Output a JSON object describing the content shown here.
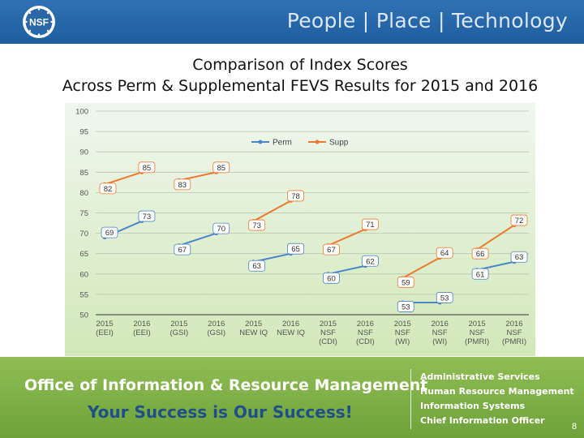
{
  "header": {
    "tagline": "People | Place | Technology",
    "logo_text": "NSF"
  },
  "title": {
    "line1": "Comparison of Index Scores",
    "line2": "Across Perm & Supplemental FEVS Results for 2015 and 2016"
  },
  "chart_data": {
    "type": "line",
    "categories": [
      [
        "2015",
        "(EEI)"
      ],
      [
        "2016",
        "(EEI)"
      ],
      [
        "2015",
        "(GSI)"
      ],
      [
        "2016",
        "(GSI)"
      ],
      [
        "2015",
        "NEW IQ"
      ],
      [
        "2016",
        "NEW IQ"
      ],
      [
        "2015",
        "NSF",
        "(CDI)"
      ],
      [
        "2016",
        "NSF",
        "(CDI)"
      ],
      [
        "2015",
        "NSF",
        "(WI)"
      ],
      [
        "2016",
        "NSF",
        "(WI)"
      ],
      [
        "2015",
        "NSF",
        "(PMRI)"
      ],
      [
        "2016",
        "NSF",
        "(PMRI)"
      ]
    ],
    "series": [
      {
        "name": "Perm",
        "color": "#4a86c6",
        "values": [
          69,
          73,
          67,
          70,
          63,
          65,
          60,
          62,
          53,
          53,
          61,
          63
        ]
      },
      {
        "name": "Supp",
        "color": "#ec7a2c",
        "values": [
          82,
          85,
          83,
          85,
          73,
          78,
          67,
          71,
          59,
          64,
          66,
          72
        ]
      }
    ],
    "groups": [
      [
        0,
        1
      ],
      [
        2,
        3
      ],
      [
        4,
        5
      ],
      [
        6,
        7
      ],
      [
        8,
        9
      ],
      [
        10,
        11
      ]
    ],
    "ylim": [
      50,
      100
    ],
    "yticks": [
      50,
      55,
      60,
      65,
      70,
      75,
      80,
      85,
      90,
      95,
      100
    ],
    "legend_position": "top-center",
    "grid": true
  },
  "footer": {
    "office": "Office of Information & Resource Management",
    "motto": "Your Success is Our Success!",
    "departments": [
      "Administrative Services",
      "Human Resource Management",
      "Information Systems",
      "Chief Information Officer"
    ],
    "page_number": "8"
  }
}
